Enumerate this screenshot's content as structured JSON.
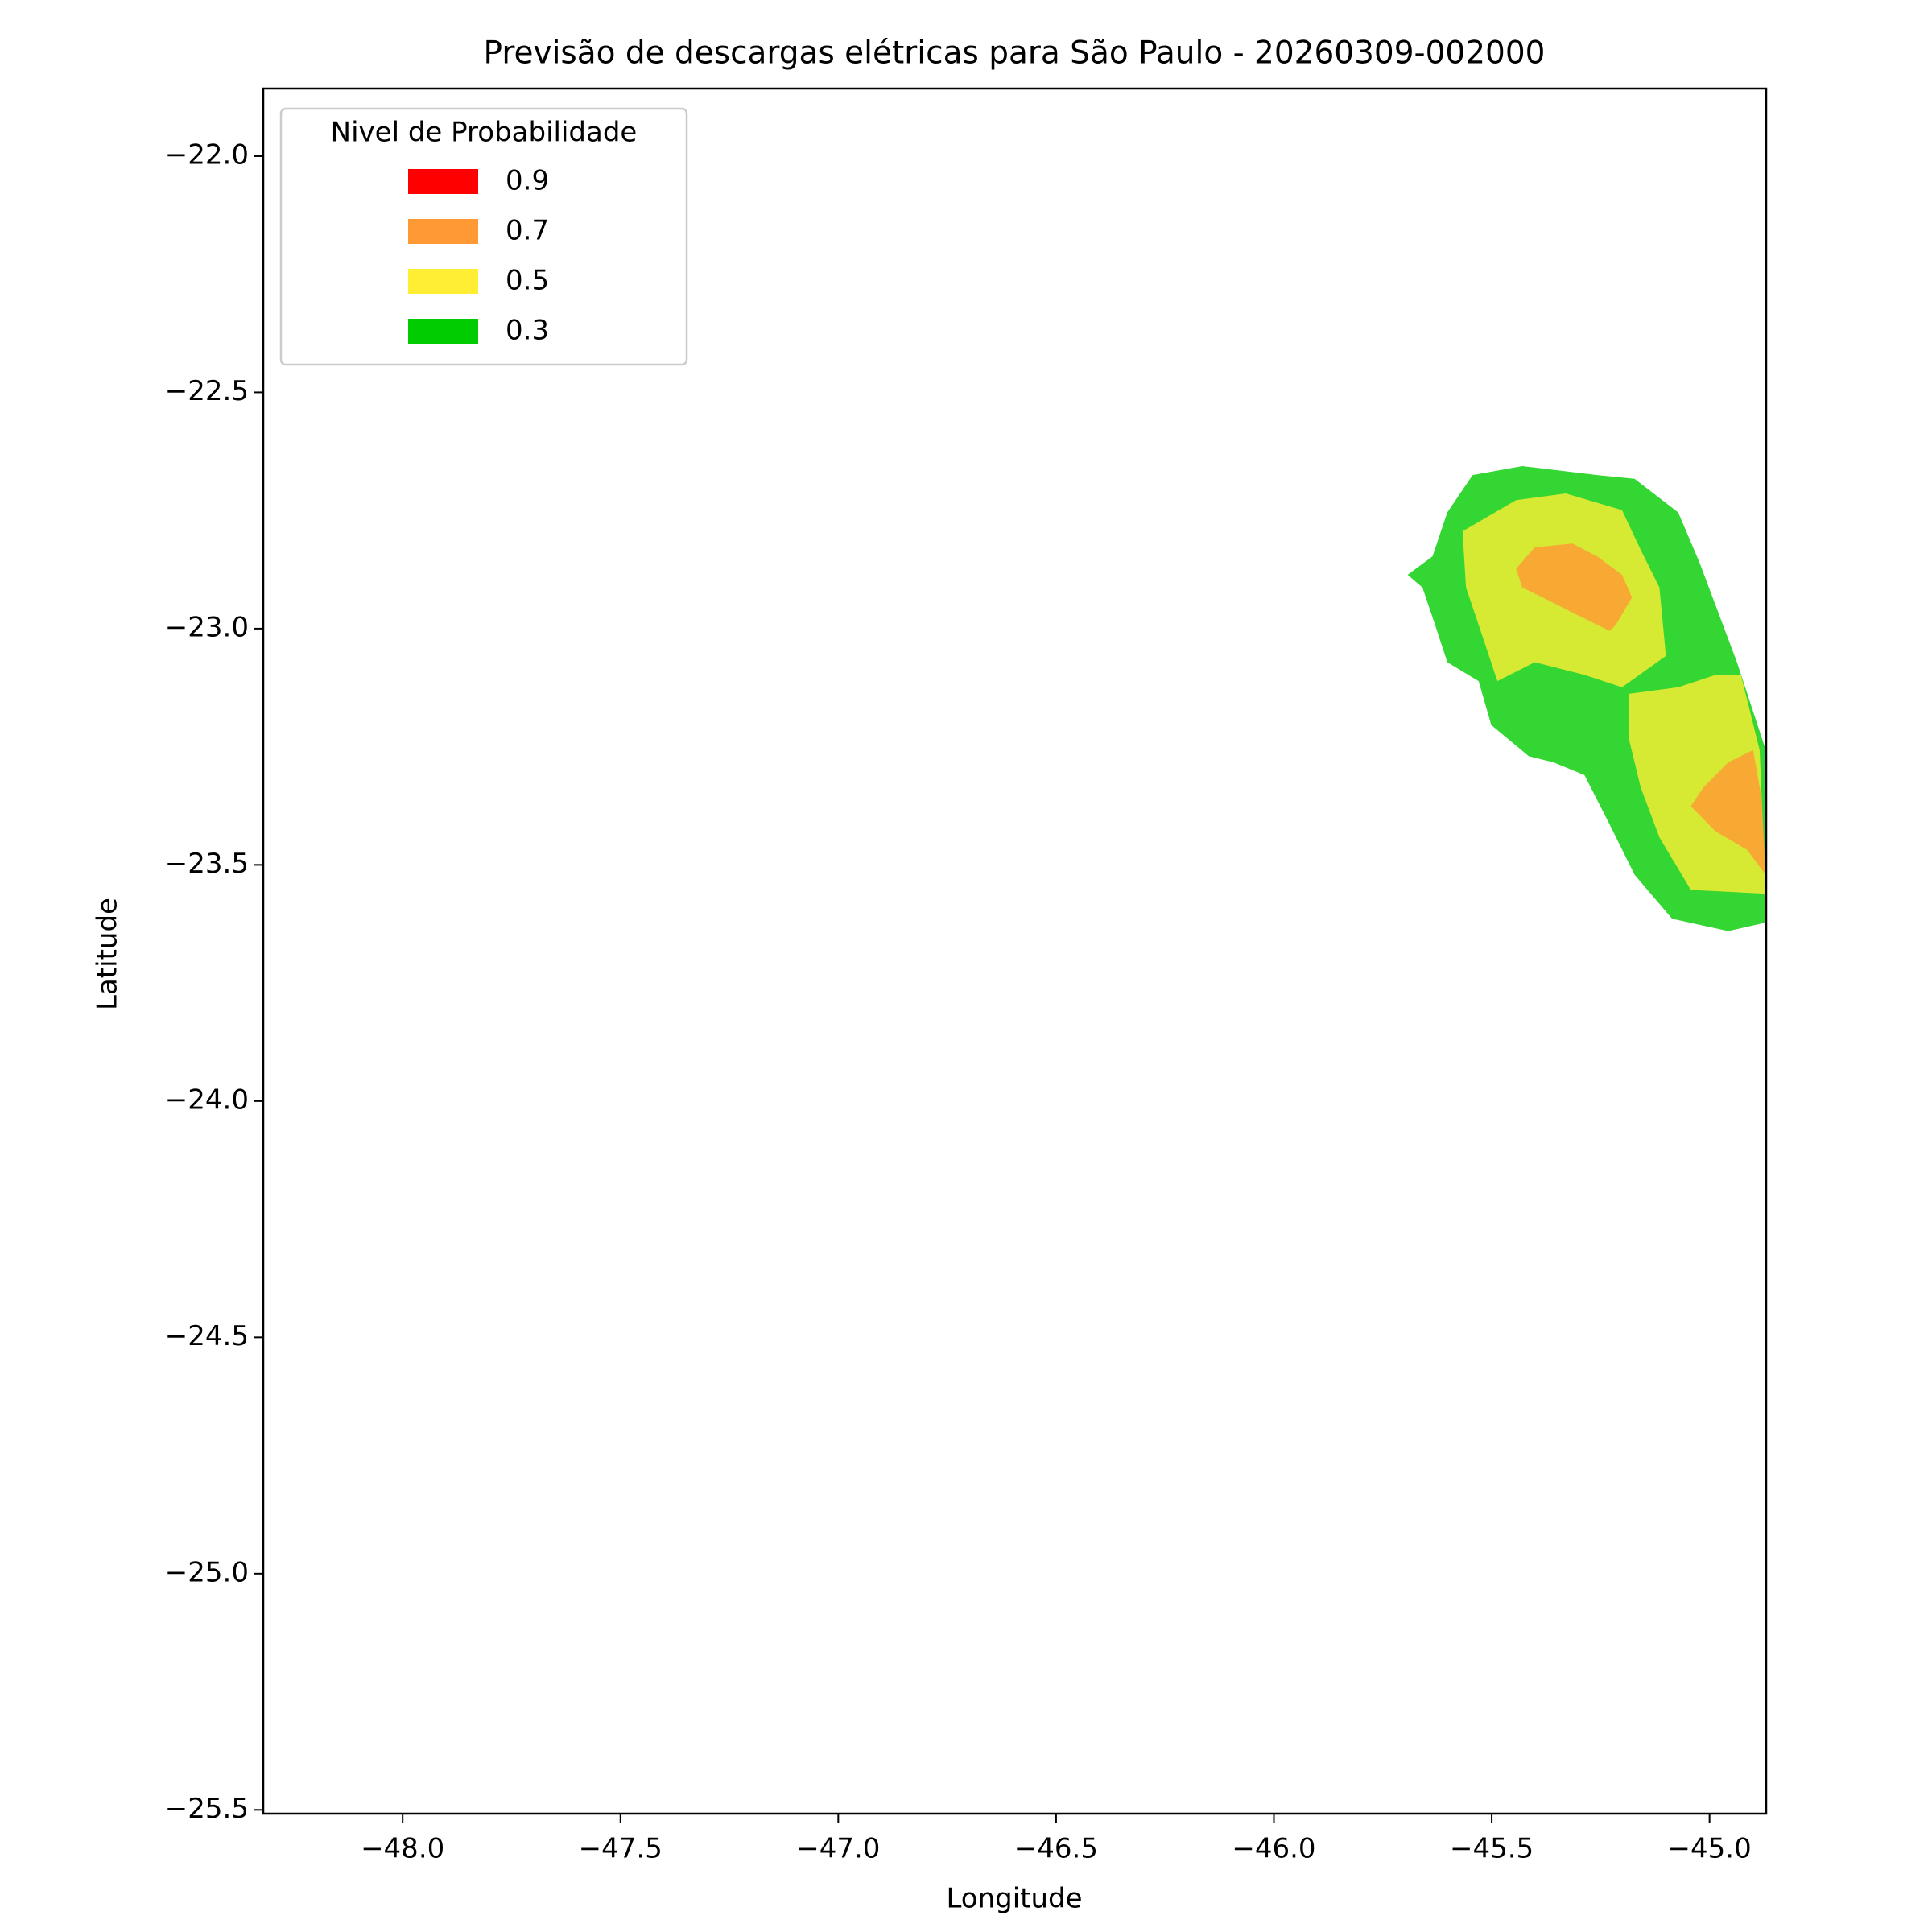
{
  "chart_data": {
    "type": "contour",
    "title": "Previsão de descargas elétricas para São Paulo - 20260309-002000",
    "x_label": "Longitude",
    "y_label": "Latitude",
    "xlim": [
      -48.32,
      -44.87
    ],
    "ylim": [
      -25.508,
      -21.857
    ],
    "xticks": [
      {
        "value": -48,
        "label": "−48.0"
      },
      {
        "value": -47.5,
        "label": "−47.5"
      },
      {
        "value": -47,
        "label": "−47.0"
      },
      {
        "value": -46.5,
        "label": "−46.5"
      },
      {
        "value": -46,
        "label": "−46.0"
      },
      {
        "value": -45.5,
        "label": "−45.5"
      },
      {
        "value": -45,
        "label": "−45.0"
      }
    ],
    "yticks": [
      {
        "value": -22,
        "label": "−22.0"
      },
      {
        "value": -22.5,
        "label": "−22.5"
      },
      {
        "value": -23,
        "label": "−23.0"
      },
      {
        "value": -23.5,
        "label": "−23.5"
      },
      {
        "value": -24,
        "label": "−24.0"
      },
      {
        "value": -24.5,
        "label": "−24.5"
      },
      {
        "value": -25,
        "label": "−25.0"
      },
      {
        "value": -25.5,
        "label": "−25.5"
      }
    ],
    "legend": {
      "title": "Nivel de Probabilidade",
      "corner": "upper left",
      "levels": [
        0.9,
        0.7,
        0.5,
        0.3
      ],
      "colors": [
        "#ff0000",
        "#ff9933",
        "#ffee33",
        "#00cc00"
      ]
    },
    "region_opacity": 0.8,
    "regions": [
      {
        "level": 0.3,
        "polygon": [
          [
            -45.693,
            -22.886
          ],
          [
            -45.636,
            -22.847
          ],
          [
            -45.602,
            -22.754
          ],
          [
            -45.544,
            -22.675
          ],
          [
            -45.43,
            -22.656
          ],
          [
            -45.258,
            -22.675
          ],
          [
            -45.172,
            -22.683
          ],
          [
            -45.072,
            -22.754
          ],
          [
            -45.023,
            -22.86
          ],
          [
            -44.937,
            -23.071
          ],
          [
            -44.871,
            -23.257
          ],
          [
            -44.871,
            -23.622
          ],
          [
            -44.957,
            -23.64
          ],
          [
            -45.086,
            -23.614
          ],
          [
            -45.172,
            -23.521
          ],
          [
            -45.229,
            -23.415
          ],
          [
            -45.287,
            -23.31
          ],
          [
            -45.358,
            -23.283
          ],
          [
            -45.415,
            -23.27
          ],
          [
            -45.501,
            -23.204
          ],
          [
            -45.53,
            -23.111
          ],
          [
            -45.602,
            -23.071
          ],
          [
            -45.63,
            -22.992
          ],
          [
            -45.659,
            -22.913
          ]
        ]
      },
      {
        "level": 0.5,
        "polygon": [
          [
            -45.567,
            -22.794
          ],
          [
            -45.444,
            -22.728
          ],
          [
            -45.33,
            -22.714
          ],
          [
            -45.201,
            -22.749
          ],
          [
            -45.158,
            -22.833
          ],
          [
            -45.115,
            -22.913
          ],
          [
            -45.1,
            -23.058
          ],
          [
            -45.201,
            -23.124
          ],
          [
            -45.287,
            -23.098
          ],
          [
            -45.401,
            -23.071
          ],
          [
            -45.487,
            -23.111
          ],
          [
            -45.53,
            -22.992
          ],
          [
            -45.559,
            -22.913
          ]
        ]
      },
      {
        "level": 0.5,
        "polygon": [
          [
            -45.186,
            -23.138
          ],
          [
            -45.072,
            -23.124
          ],
          [
            -44.986,
            -23.098
          ],
          [
            -44.928,
            -23.098
          ],
          [
            -44.885,
            -23.257
          ],
          [
            -44.871,
            -23.561
          ],
          [
            -45.043,
            -23.553
          ],
          [
            -45.115,
            -23.442
          ],
          [
            -45.158,
            -23.336
          ],
          [
            -45.186,
            -23.23
          ]
        ]
      },
      {
        "level": 0.7,
        "polygon": [
          [
            -45.444,
            -22.873
          ],
          [
            -45.401,
            -22.828
          ],
          [
            -45.315,
            -22.82
          ],
          [
            -45.258,
            -22.847
          ],
          [
            -45.201,
            -22.886
          ],
          [
            -45.178,
            -22.934
          ],
          [
            -45.215,
            -22.992
          ],
          [
            -45.229,
            -23.005
          ],
          [
            -45.315,
            -22.966
          ],
          [
            -45.372,
            -22.939
          ],
          [
            -45.43,
            -22.913
          ]
        ]
      },
      {
        "level": 0.7,
        "polygon": [
          [
            -44.957,
            -23.283
          ],
          [
            -44.9,
            -23.257
          ],
          [
            -44.88,
            -23.362
          ],
          [
            -44.871,
            -23.521
          ],
          [
            -44.914,
            -23.468
          ],
          [
            -44.986,
            -23.429
          ],
          [
            -45.043,
            -23.376
          ],
          [
            -45.014,
            -23.336
          ]
        ]
      }
    ]
  }
}
